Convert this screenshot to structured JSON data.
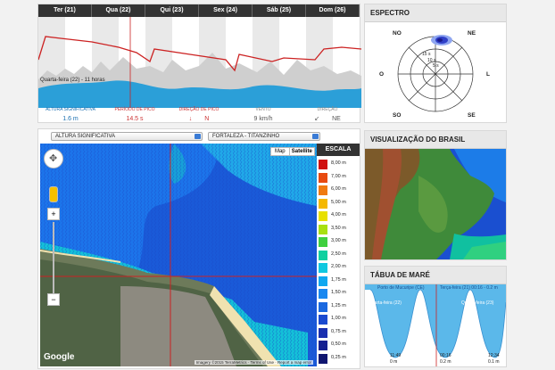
{
  "forecast": {
    "days": [
      "Ter (21)",
      "Qua (22)",
      "Qui (23)",
      "Sex (24)",
      "Sáb (25)",
      "Dom (26)"
    ],
    "tooltip": "Quarta-feira (22) - 11 horas",
    "stats": [
      {
        "label": "ALTURA SIGNIFICATIVA",
        "value": "1.6 m"
      },
      {
        "label": "PERÍODO DE PICO",
        "value": "14.5 s"
      },
      {
        "label": "DIREÇÃO DE PICO",
        "value": "N"
      },
      {
        "label": "VENTO",
        "value": "9 km/h"
      },
      {
        "label": "DIREÇÃO",
        "value": "NE"
      }
    ]
  },
  "map": {
    "variable_select": "ALTURA SIGNIFICATIVA",
    "location_select": "FORTALEZA - TITANZINHO",
    "map_btn": "Map",
    "satellite_btn": "Satellite",
    "google": "Google",
    "attribution": "Imagery ©2015 TerraMetrics · Terms of Use · Report a map error",
    "scale_title": "ESCALA",
    "scale": [
      {
        "label": "8,00 m",
        "color": "#d01010"
      },
      {
        "label": "7,00 m",
        "color": "#e84a10"
      },
      {
        "label": "6,00 m",
        "color": "#f07a10"
      },
      {
        "label": "5,00 m",
        "color": "#f5b800"
      },
      {
        "label": "4,00 m",
        "color": "#e8e000"
      },
      {
        "label": "3,50 m",
        "color": "#a8e010"
      },
      {
        "label": "3,00 m",
        "color": "#40d040"
      },
      {
        "label": "2,50 m",
        "color": "#10d0a0"
      },
      {
        "label": "2,00 m",
        "color": "#10c8e0"
      },
      {
        "label": "1,75 m",
        "color": "#10a8f0"
      },
      {
        "label": "1,50 m",
        "color": "#1a88f0"
      },
      {
        "label": "1,25 m",
        "color": "#1a68e0"
      },
      {
        "label": "1,00 m",
        "color": "#1a4ad0"
      },
      {
        "label": "0,75 m",
        "color": "#1a30b0"
      },
      {
        "label": "0,50 m",
        "color": "#152090"
      },
      {
        "label": "0,25 m",
        "color": "#101670"
      }
    ]
  },
  "spectrum": {
    "title": "ESPECTRO",
    "dirs": [
      "NO",
      "NE",
      "O",
      "L",
      "SO",
      "SE"
    ],
    "rings": [
      "15 s",
      "10 s",
      "5 s"
    ]
  },
  "brazil": {
    "title": "VISUALIZAÇÃO DO BRASIL"
  },
  "tide": {
    "title": "TÁBUA DE MARÉ",
    "station": "Porto de Mucuripe (CE)",
    "info": "Terça-feira (21) 00:16 - 0.2 m",
    "day_left": "Quarta-feira (22)",
    "day_right": "Quinta-feira (23)",
    "lows": [
      {
        "time": "11:49",
        "height": "0 m"
      },
      {
        "time": "00:16",
        "height": "0.2 m"
      },
      {
        "time": "12:34",
        "height": "0.1 m"
      }
    ]
  },
  "colors": {
    "accent": "#1a6fb0",
    "red": "#cc2222",
    "ocean": "#1a5ad8"
  }
}
